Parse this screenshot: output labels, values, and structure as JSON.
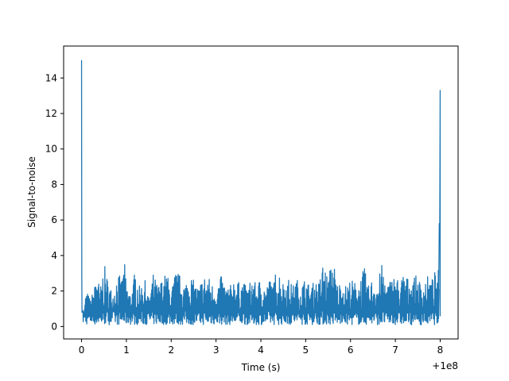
{
  "chart_data": {
    "type": "line",
    "title": "",
    "xlabel": "Time (s)",
    "ylabel": "Signal-to-noise",
    "x_offset_label": "+1e8",
    "xlim": [
      -0.4,
      8.4
    ],
    "ylim": [
      -0.7,
      15.8
    ],
    "grid": false,
    "legend": "none",
    "x_ticks": [
      0,
      1,
      2,
      3,
      4,
      5,
      6,
      7,
      8
    ],
    "x_tick_labels": [
      "0",
      "1",
      "2",
      "3",
      "4",
      "5",
      "6",
      "7",
      "8"
    ],
    "y_ticks": [
      0,
      2,
      4,
      6,
      8,
      10,
      12,
      14
    ],
    "y_tick_labels": [
      "0",
      "2",
      "4",
      "6",
      "8",
      "10",
      "12",
      "14"
    ],
    "series": [
      {
        "color": "#1f77b4",
        "x": [
          0.0,
          0.005,
          0.02,
          0.05,
          0.1,
          0.2,
          0.3,
          0.35,
          0.4,
          0.5,
          0.6,
          0.7,
          0.8,
          0.9,
          0.95,
          1.0,
          1.1,
          1.2,
          1.3,
          1.4,
          1.5,
          1.6,
          1.7,
          1.8,
          1.9,
          2.0,
          2.1,
          2.2,
          2.3,
          2.4,
          2.5,
          2.6,
          2.7,
          2.8,
          2.9,
          3.0,
          3.1,
          3.2,
          3.3,
          3.4,
          3.5,
          3.6,
          3.7,
          3.8,
          3.9,
          4.0,
          4.1,
          4.2,
          4.3,
          4.35,
          4.4,
          4.5,
          4.6,
          4.7,
          4.8,
          4.9,
          5.0,
          5.1,
          5.2,
          5.3,
          5.4,
          5.5,
          5.6,
          5.7,
          5.8,
          5.9,
          6.0,
          6.1,
          6.2,
          6.3,
          6.4,
          6.5,
          6.6,
          6.7,
          6.8,
          6.9,
          7.0,
          7.1,
          7.2,
          7.3,
          7.4,
          7.5,
          7.6,
          7.7,
          7.8,
          7.9,
          7.95,
          7.98,
          7.99,
          8.0
        ],
        "y": [
          15.0,
          3.0,
          1.0,
          0.5,
          2.1,
          1.5,
          2.4,
          4.0,
          1.8,
          3.6,
          2.5,
          1.9,
          3.1,
          2.6,
          3.9,
          2.4,
          1.8,
          3.3,
          2.2,
          2.8,
          1.6,
          3.0,
          2.3,
          2.7,
          3.1,
          2.0,
          3.2,
          2.9,
          2.4,
          3.1,
          2.6,
          2.2,
          2.8,
          3.0,
          2.5,
          2.1,
          2.9,
          2.4,
          2.2,
          2.8,
          2.5,
          2.6,
          2.1,
          2.9,
          2.3,
          2.8,
          2.2,
          2.7,
          2.5,
          3.7,
          3.3,
          2.5,
          2.8,
          2.3,
          2.7,
          2.4,
          2.8,
          2.2,
          2.6,
          2.5,
          3.9,
          2.6,
          4.2,
          2.4,
          2.6,
          2.3,
          2.7,
          2.5,
          2.6,
          3.4,
          2.3,
          2.8,
          2.5,
          3.5,
          2.4,
          2.7,
          3.0,
          2.5,
          3.2,
          2.6,
          2.9,
          2.8,
          2.3,
          2.9,
          2.6,
          3.2,
          2.2,
          5.8,
          4.7,
          13.3
        ]
      }
    ]
  }
}
